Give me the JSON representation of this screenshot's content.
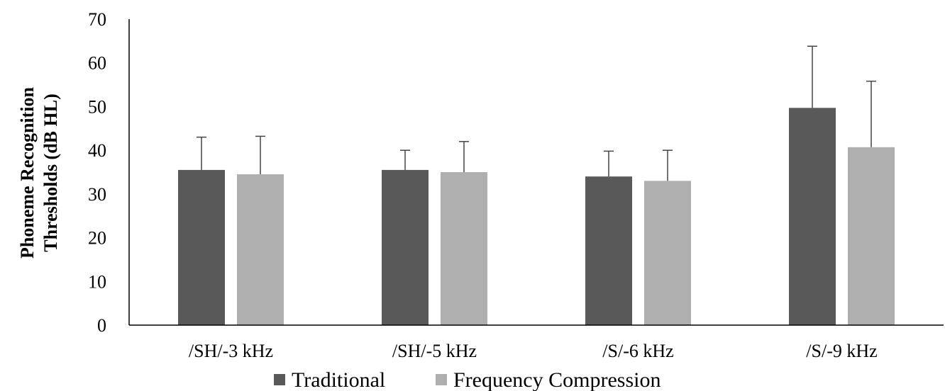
{
  "chart_data": {
    "type": "bar",
    "title": "",
    "xlabel": "",
    "ylabel_lines": [
      "Phoneme Recognition",
      "Thresholds (dB HL)"
    ],
    "ylim": [
      0,
      70
    ],
    "yticks": [
      0,
      10,
      20,
      30,
      40,
      50,
      60,
      70
    ],
    "categories": [
      "/SH/-3 kHz",
      "/SH/-5 kHz",
      "/S/-6 kHz",
      "/S/-9 kHz"
    ],
    "series": [
      {
        "name": "Traditional",
        "color": "#595959",
        "values": [
          35.5,
          35.5,
          34,
          49.7
        ],
        "error_upper": [
          43,
          40,
          39.8,
          63.8
        ]
      },
      {
        "name": "Frequency Compression",
        "color": "#afafaf",
        "values": [
          34.5,
          35,
          33,
          40.7
        ],
        "error_upper": [
          43.2,
          42,
          40,
          55.8
        ]
      }
    ],
    "grid": false,
    "legend_position": "bottom"
  }
}
